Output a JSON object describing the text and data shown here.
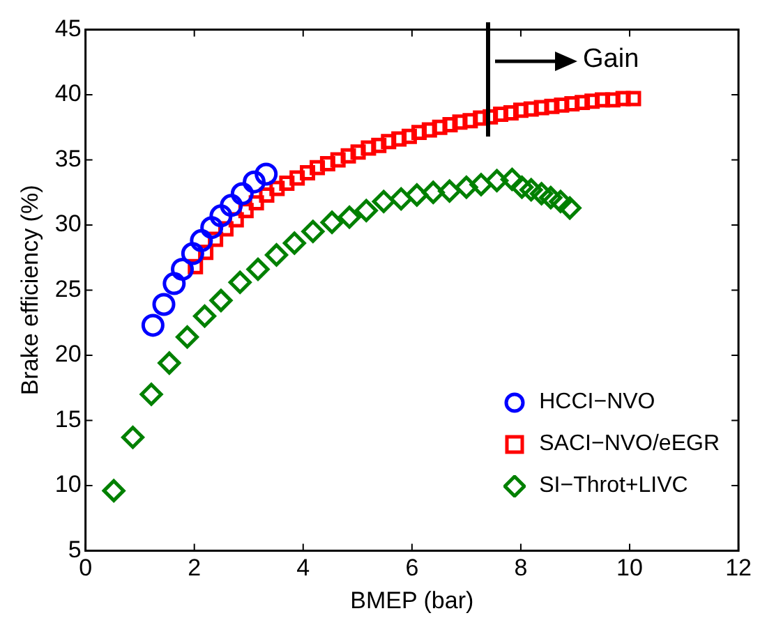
{
  "chart_data": {
    "type": "scatter",
    "xlabel": "BMEP (bar)",
    "ylabel": "Brake efficiency (%)",
    "xlim": [
      0,
      12
    ],
    "xticks": [
      0,
      2,
      4,
      6,
      8,
      10,
      12
    ],
    "ylim": [
      5,
      45
    ],
    "yticks": [
      5,
      10,
      15,
      20,
      25,
      30,
      35,
      40,
      45
    ],
    "grid": false,
    "legend": "bottom right",
    "annotations": [
      "Gain"
    ],
    "series": [
      {
        "name": "HCCI−NVO",
        "color": "#0000ff",
        "marker": "circle",
        "x": [
          1.24,
          1.44,
          1.63,
          1.78,
          1.97,
          2.13,
          2.32,
          2.49,
          2.68,
          2.88,
          3.1,
          3.32
        ],
        "values": [
          22.3,
          23.9,
          25.5,
          26.6,
          27.8,
          28.8,
          29.8,
          30.7,
          31.5,
          32.4,
          33.3,
          33.9
        ]
      },
      {
        "name": "SACI−NVO/eEGR",
        "color": "#ff0000",
        "marker": "square",
        "x": [
          2.02,
          2.21,
          2.39,
          2.58,
          2.77,
          2.95,
          3.14,
          3.33,
          3.52,
          3.7,
          3.89,
          4.08,
          4.26,
          4.45,
          4.64,
          4.83,
          5.01,
          5.2,
          5.39,
          5.57,
          5.76,
          5.95,
          6.13,
          6.32,
          6.51,
          6.7,
          6.88,
          7.07,
          7.26,
          7.44,
          7.63,
          7.82,
          8.0,
          8.19,
          8.38,
          8.57,
          8.75,
          8.94,
          9.13,
          9.31,
          9.5,
          9.69,
          9.88,
          10.07
        ],
        "values": [
          26.8,
          27.9,
          28.9,
          29.7,
          30.4,
          31.1,
          31.7,
          32.3,
          32.8,
          33.2,
          33.6,
          34.0,
          34.4,
          34.7,
          35.0,
          35.3,
          35.6,
          35.9,
          36.1,
          36.4,
          36.6,
          36.8,
          37.1,
          37.3,
          37.5,
          37.7,
          37.9,
          38.0,
          38.2,
          38.3,
          38.5,
          38.6,
          38.8,
          38.9,
          39.0,
          39.1,
          39.2,
          39.3,
          39.4,
          39.5,
          39.6,
          39.6,
          39.7,
          39.7
        ]
      },
      {
        "name": "SI−Throt+LIVC",
        "color": "#008000",
        "marker": "diamond",
        "x": [
          0.52,
          0.87,
          1.21,
          1.54,
          1.87,
          2.19,
          2.49,
          2.84,
          3.17,
          3.51,
          3.84,
          4.18,
          4.53,
          4.85,
          5.16,
          5.48,
          5.8,
          6.09,
          6.39,
          6.69,
          7.0,
          7.27,
          7.56,
          7.84,
          8.02,
          8.19,
          8.38,
          8.55,
          8.73,
          8.9
        ],
        "values": [
          9.6,
          13.7,
          17.0,
          19.4,
          21.4,
          23.0,
          24.2,
          25.6,
          26.6,
          27.7,
          28.6,
          29.5,
          30.2,
          30.6,
          31.1,
          31.8,
          32.0,
          32.3,
          32.5,
          32.6,
          32.9,
          33.1,
          33.4,
          33.5,
          32.9,
          32.7,
          32.4,
          32.1,
          31.8,
          31.3
        ]
      }
    ]
  }
}
